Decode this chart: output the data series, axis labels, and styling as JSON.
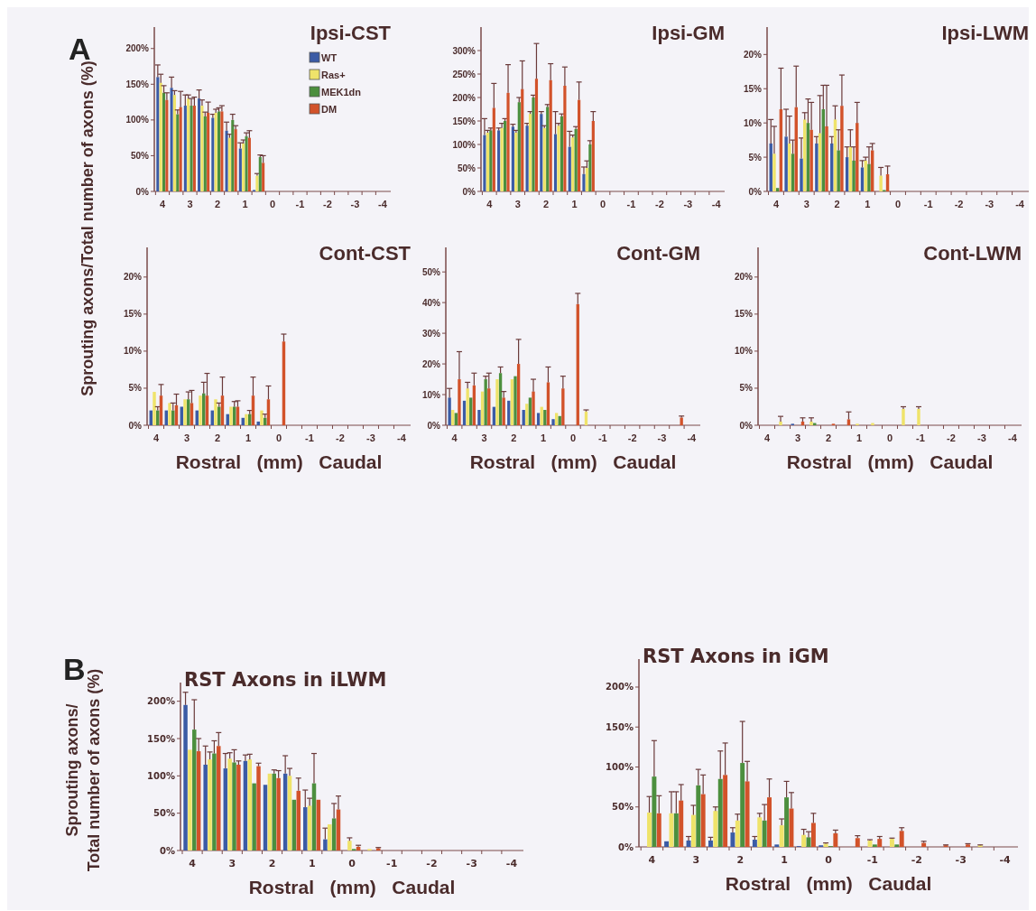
{
  "chart_data": [
    {
      "type": "bar",
      "title": "Ipsi-CST",
      "ylabel": "Sprouting axons/Total number of axons (%)",
      "annotations": [
        "A"
      ],
      "legend": "top right",
      "categories": [
        "4",
        null,
        "3",
        null,
        "2",
        null,
        "1",
        null,
        "0",
        null,
        "-1",
        null,
        "-2",
        null,
        "-3",
        null,
        "-4"
      ],
      "ylim": [
        0,
        230
      ],
      "yticks": [
        {
          "value": 0,
          "label": "0%"
        },
        {
          "value": 50,
          "label": "50%"
        },
        {
          "value": 100,
          "label": "100%"
        },
        {
          "value": 150,
          "label": "150%"
        },
        {
          "value": 200,
          "label": "200%"
        }
      ],
      "series": [
        {
          "name": "WT",
          "color": "#3b5ba5",
          "values": [
            160,
            145,
            120,
            130,
            103,
            85,
            60,
            2,
            null,
            null,
            null,
            null,
            null,
            null,
            null,
            null,
            null
          ],
          "errors": [
            17,
            15,
            15,
            12,
            5,
            12,
            8,
            null,
            null,
            null,
            null,
            null,
            null,
            null,
            null,
            null,
            null
          ]
        },
        {
          "name": "Ras+",
          "color": "#efe36a",
          "values": [
            152,
            135,
            130,
            120,
            110,
            75,
            67,
            22,
            null,
            null,
            null,
            null,
            null,
            null,
            null,
            null,
            null
          ],
          "errors": [
            12,
            6,
            5,
            8,
            5,
            5,
            5,
            3,
            null,
            null,
            null,
            null,
            null,
            null,
            null,
            null,
            null
          ]
        },
        {
          "name": "MEK1dn",
          "color": "#4c8f3e",
          "values": [
            138,
            108,
            120,
            105,
            112,
            100,
            77,
            48,
            null,
            null,
            null,
            null,
            null,
            null,
            null,
            null,
            null
          ],
          "errors": [
            10,
            6,
            10,
            6,
            5,
            8,
            5,
            3,
            null,
            null,
            null,
            null,
            null,
            null,
            null,
            null,
            null
          ]
        },
        {
          "name": "DM",
          "color": "#d2522a",
          "values": [
            128,
            118,
            120,
            110,
            112,
            87,
            75,
            40,
            null,
            null,
            null,
            null,
            null,
            null,
            null,
            null,
            null
          ],
          "errors": [
            10,
            22,
            12,
            15,
            8,
            5,
            10,
            10,
            null,
            null,
            null,
            null,
            null,
            null,
            null,
            null,
            null
          ]
        }
      ]
    },
    {
      "type": "bar",
      "title": "Ipsi-GM",
      "categories": [
        "4",
        null,
        "3",
        null,
        "2",
        null,
        "1",
        null,
        "0",
        null,
        "-1",
        null,
        "-2",
        null,
        "-3",
        null,
        "-4"
      ],
      "ylim": [
        0,
        350
      ],
      "yticks": [
        {
          "value": 0,
          "label": "0%"
        },
        {
          "value": 50,
          "label": "50%"
        },
        {
          "value": 100,
          "label": "100%"
        },
        {
          "value": 150,
          "label": "150%"
        },
        {
          "value": 200,
          "label": "200%"
        },
        {
          "value": 250,
          "label": "250%"
        },
        {
          "value": 300,
          "label": "300%"
        }
      ],
      "series": [
        {
          "color": "#3b5ba5",
          "values": [
            120,
            130,
            138,
            140,
            165,
            122,
            95,
            37,
            null,
            null,
            null,
            null,
            null,
            null,
            null,
            null,
            null
          ],
          "errors": [
            35,
            5,
            5,
            5,
            5,
            48,
            33,
            15,
            null,
            null,
            null,
            null,
            null,
            null,
            null,
            null,
            null
          ]
        },
        {
          "color": "#efe36a",
          "values": [
            125,
            135,
            125,
            165,
            135,
            140,
            115,
            50,
            null,
            null,
            null,
            null,
            null,
            null,
            null,
            null,
            null
          ],
          "errors": [
            5,
            10,
            5,
            5,
            5,
            5,
            5,
            15,
            null,
            null,
            null,
            null,
            null,
            null,
            null,
            null,
            null
          ]
        },
        {
          "color": "#4c8f3e",
          "values": [
            130,
            150,
            190,
            200,
            180,
            160,
            133,
            100,
            null,
            null,
            null,
            null,
            null,
            null,
            null,
            null,
            null
          ],
          "errors": [
            5,
            5,
            10,
            5,
            5,
            5,
            5,
            8,
            null,
            null,
            null,
            null,
            null,
            null,
            null,
            null,
            null
          ]
        },
        {
          "color": "#d2522a",
          "values": [
            178,
            210,
            218,
            240,
            237,
            225,
            195,
            150,
            null,
            null,
            null,
            null,
            null,
            null,
            null,
            null,
            null
          ],
          "errors": [
            52,
            60,
            60,
            75,
            35,
            40,
            38,
            20,
            null,
            null,
            null,
            null,
            null,
            null,
            null,
            null,
            null
          ]
        }
      ]
    },
    {
      "type": "bar",
      "title": "Ipsi-LWM",
      "categories": [
        "4",
        null,
        "3",
        null,
        "2",
        null,
        "1",
        null,
        "0",
        null,
        "-1",
        null,
        "-2",
        null,
        "-3",
        null,
        "-4"
      ],
      "ylim": [
        0,
        24
      ],
      "yticks": [
        {
          "value": 0,
          "label": "0%"
        },
        {
          "value": 5,
          "label": "5%"
        },
        {
          "value": 10,
          "label": "10%"
        },
        {
          "value": 15,
          "label": "15%"
        },
        {
          "value": 20,
          "label": "20%"
        }
      ],
      "series": [
        {
          "color": "#3b5ba5",
          "values": [
            7,
            8,
            4.8,
            7,
            7,
            5,
            3.5,
            null,
            null,
            null,
            null,
            null,
            null,
            null,
            null,
            null,
            null
          ],
          "errors": [
            3.5,
            4,
            3,
            1,
            1,
            1.5,
            1,
            null,
            null,
            null,
            null,
            null,
            null,
            null,
            null,
            null,
            null
          ]
        },
        {
          "color": "#efe36a",
          "values": [
            5.5,
            7,
            10.5,
            8.5,
            10.5,
            6.5,
            4.5,
            2.3,
            null,
            null,
            null,
            null,
            null,
            null,
            null,
            null,
            null
          ],
          "errors": [
            4,
            4,
            1,
            5.5,
            2,
            2.5,
            0.5,
            1.2,
            null,
            null,
            null,
            null,
            null,
            null,
            null,
            null,
            null
          ]
        },
        {
          "color": "#4c8f3e",
          "values": [
            0.5,
            5.5,
            10,
            12,
            6,
            4.5,
            4,
            0.2,
            null,
            null,
            null,
            null,
            null,
            null,
            null,
            null,
            null
          ],
          "errors": [
            null,
            2,
            3.5,
            3.5,
            3,
            2,
            2.5,
            null,
            null,
            null,
            null,
            null,
            null,
            null,
            null,
            null,
            null
          ]
        },
        {
          "color": "#d2522a",
          "values": [
            12,
            12.3,
            9,
            9.5,
            12.5,
            10,
            6,
            2.5,
            null,
            null,
            null,
            null,
            null,
            null,
            null,
            null,
            null
          ],
          "errors": [
            6,
            6,
            4,
            6,
            4.5,
            3,
            1,
            1.2,
            null,
            null,
            null,
            null,
            null,
            null,
            null,
            null,
            null
          ]
        }
      ]
    },
    {
      "type": "bar",
      "title": "Cont-CST",
      "xlabel": "Rostral   (mm)   Caudal",
      "categories": [
        "4",
        null,
        "3",
        null,
        "2",
        null,
        "1",
        null,
        "0",
        null,
        "-1",
        null,
        "-2",
        null,
        "-3",
        null,
        "-4"
      ],
      "ylim": [
        0,
        24
      ],
      "yticks": [
        {
          "value": 0,
          "label": "0%"
        },
        {
          "value": 5,
          "label": "5%"
        },
        {
          "value": 10,
          "label": "10%"
        },
        {
          "value": 15,
          "label": "15%"
        },
        {
          "value": 20,
          "label": "20%"
        }
      ],
      "series": [
        {
          "color": "#3b5ba5",
          "values": [
            2,
            2,
            2.5,
            2,
            2,
            1.5,
            1,
            0.5,
            null,
            null,
            null,
            null,
            null,
            null,
            null,
            null,
            null
          ],
          "errors": [
            null,
            null,
            null,
            null,
            null,
            null,
            null,
            null,
            null,
            null,
            null,
            null,
            null,
            null,
            null,
            null,
            null
          ]
        },
        {
          "color": "#efe36a",
          "values": [
            4.5,
            3,
            3.5,
            4,
            3.5,
            2.5,
            1.5,
            2,
            null,
            null,
            null,
            null,
            null,
            null,
            null,
            null,
            null
          ],
          "errors": [
            null,
            null,
            null,
            null,
            null,
            null,
            null,
            null,
            null,
            null,
            null,
            null,
            null,
            null,
            null,
            null,
            null
          ]
        },
        {
          "color": "#4c8f3e",
          "values": [
            2,
            2,
            3.5,
            4.3,
            2.5,
            2.5,
            1.5,
            1,
            null,
            null,
            null,
            null,
            null,
            null,
            null,
            null,
            null
          ],
          "errors": [
            0.5,
            1,
            1,
            1.5,
            0.5,
            0.7,
            0.5,
            0.5,
            null,
            null,
            null,
            null,
            null,
            null,
            null,
            null,
            null
          ]
        },
        {
          "color": "#d2522a",
          "values": [
            4,
            2.7,
            3,
            4,
            4,
            2.5,
            4,
            3.5,
            11.3,
            null,
            null,
            null,
            null,
            null,
            null,
            null,
            null
          ],
          "errors": [
            1.5,
            1.5,
            1.7,
            3,
            2.5,
            0.8,
            2.5,
            1.8,
            1,
            null,
            null,
            null,
            null,
            null,
            null,
            null,
            null
          ]
        }
      ]
    },
    {
      "type": "bar",
      "title": "Cont-GM",
      "xlabel": "Rostral   (mm)   Caudal",
      "categories": [
        "4",
        null,
        "3",
        null,
        "2",
        null,
        "1",
        null,
        "0",
        null,
        "-1",
        null,
        "-2",
        null,
        "-3",
        null,
        "-4"
      ],
      "ylim": [
        0,
        58
      ],
      "yticks": [
        {
          "value": 0,
          "label": "0%"
        },
        {
          "value": 10,
          "label": "10%"
        },
        {
          "value": 20,
          "label": "20%"
        },
        {
          "value": 30,
          "label": "30%"
        },
        {
          "value": 40,
          "label": "40%"
        },
        {
          "value": 50,
          "label": "50%"
        }
      ],
      "series": [
        {
          "color": "#3b5ba5",
          "values": [
            9,
            8,
            5,
            6,
            8,
            5,
            4,
            2,
            null,
            null,
            null,
            null,
            null,
            null,
            null,
            null,
            null
          ],
          "errors": [
            3,
            null,
            null,
            null,
            null,
            null,
            null,
            null,
            null,
            null,
            null,
            null,
            null,
            null,
            null,
            null,
            null
          ]
        },
        {
          "color": "#efe36a",
          "values": [
            5,
            12,
            11,
            15,
            15,
            7,
            6,
            4,
            null,
            4.5,
            null,
            null,
            null,
            null,
            null,
            null,
            null
          ],
          "errors": [
            null,
            2,
            null,
            null,
            null,
            null,
            null,
            null,
            null,
            0.5,
            null,
            null,
            null,
            null,
            null,
            null,
            null
          ]
        },
        {
          "color": "#4c8f3e",
          "values": [
            4,
            9,
            15,
            17,
            16,
            9,
            5,
            3,
            null,
            null,
            null,
            null,
            null,
            null,
            null,
            null,
            null
          ],
          "errors": [
            null,
            null,
            1,
            2,
            null,
            null,
            null,
            null,
            null,
            null,
            null,
            null,
            null,
            null,
            null,
            null,
            null
          ]
        },
        {
          "color": "#d2522a",
          "values": [
            15,
            13,
            12,
            9,
            20,
            11,
            14,
            12,
            39.5,
            null,
            null,
            null,
            null,
            null,
            null,
            2.5,
            null
          ],
          "errors": [
            9,
            4,
            5,
            2,
            8,
            4,
            5,
            4,
            3.5,
            null,
            null,
            null,
            null,
            null,
            null,
            0.5,
            null
          ]
        }
      ]
    },
    {
      "type": "bar",
      "title": "Cont-LWM",
      "xlabel": "Rostral   (mm)   Caudal",
      "categories": [
        "4",
        null,
        "3",
        null,
        "2",
        null,
        "1",
        null,
        "0",
        null,
        "-1",
        null,
        "-2",
        null,
        "-3",
        null,
        "-4"
      ],
      "ylim": [
        0,
        24
      ],
      "yticks": [
        {
          "value": 0,
          "label": "0%"
        },
        {
          "value": 5,
          "label": "5%"
        },
        {
          "value": 10,
          "label": "10%"
        },
        {
          "value": 15,
          "label": "15%"
        },
        {
          "value": 20,
          "label": "20%"
        }
      ],
      "series": [
        {
          "color": "#3b5ba5",
          "values": [
            null,
            null,
            0.2,
            null,
            null,
            null,
            null,
            null,
            null,
            null,
            null,
            null,
            null,
            null,
            null,
            null,
            null
          ],
          "errors": [
            null,
            null,
            null,
            null,
            null,
            null,
            null,
            null,
            null,
            null,
            null,
            null,
            null,
            null,
            null,
            null,
            null
          ]
        },
        {
          "color": "#efe36a",
          "values": [
            null,
            0.5,
            null,
            0.5,
            null,
            null,
            0.2,
            0.3,
            null,
            2.2,
            2.2,
            null,
            null,
            null,
            null,
            null,
            null
          ],
          "errors": [
            null,
            0.7,
            null,
            0.5,
            null,
            null,
            null,
            null,
            null,
            0.3,
            0.3,
            null,
            null,
            null,
            null,
            null,
            null
          ]
        },
        {
          "color": "#4c8f3e",
          "values": [
            null,
            null,
            null,
            0.3,
            null,
            null,
            null,
            null,
            null,
            null,
            null,
            null,
            null,
            null,
            null,
            null,
            null
          ],
          "errors": [
            null,
            null,
            null,
            null,
            null,
            null,
            null,
            null,
            null,
            null,
            null,
            null,
            null,
            null,
            null,
            null,
            null
          ]
        },
        {
          "color": "#d2522a",
          "values": [
            null,
            null,
            0.5,
            null,
            0.2,
            0.8,
            null,
            null,
            null,
            null,
            null,
            null,
            null,
            null,
            null,
            null,
            null
          ],
          "errors": [
            null,
            null,
            0.5,
            null,
            null,
            1,
            null,
            null,
            null,
            null,
            null,
            null,
            null,
            null,
            null,
            null,
            null
          ]
        }
      ]
    },
    {
      "type": "bar",
      "title": "RST Axons in iLWM",
      "ylabel": "Sprouting axons/\nTotal number of axons (%)",
      "xlabel": "Rostral   (mm)   Caudal",
      "annotations": [
        "B"
      ],
      "categories": [
        "4",
        null,
        "3",
        null,
        "2",
        null,
        "1",
        null,
        "0",
        null,
        "-1",
        null,
        "-2",
        null,
        "-3",
        null,
        "-4"
      ],
      "ylim": [
        0,
        225
      ],
      "yticks": [
        {
          "value": 0,
          "label": "0%"
        },
        {
          "value": 50,
          "label": "50%"
        },
        {
          "value": 100,
          "label": "100%"
        },
        {
          "value": 150,
          "label": "150%"
        },
        {
          "value": 200,
          "label": "200%"
        }
      ],
      "series": [
        {
          "color": "#3b5ba5",
          "values": [
            195,
            115,
            110,
            120,
            88,
            103,
            58,
            15,
            null,
            null,
            null,
            null,
            null,
            null,
            null,
            null,
            null
          ],
          "errors": [
            17,
            25,
            20,
            8,
            null,
            24,
            23,
            15,
            null,
            null,
            null,
            null,
            null,
            null,
            null,
            null,
            null
          ]
        },
        {
          "color": "#efe36a",
          "values": [
            135,
            122,
            123,
            122,
            103,
            100,
            60,
            35,
            13,
            2,
            null,
            null,
            null,
            null,
            null,
            null,
            null
          ],
          "errors": [
            null,
            10,
            8,
            7,
            null,
            10,
            10,
            null,
            4,
            null,
            null,
            null,
            null,
            null,
            null,
            null,
            null
          ]
        },
        {
          "color": "#4c8f3e",
          "values": [
            162,
            130,
            118,
            90,
            103,
            68,
            90,
            43,
            2,
            null,
            null,
            null,
            null,
            null,
            null,
            null,
            null
          ],
          "errors": [
            40,
            17,
            17,
            null,
            5,
            null,
            40,
            20,
            null,
            null,
            null,
            null,
            null,
            null,
            null,
            null,
            null
          ]
        },
        {
          "color": "#d2522a",
          "values": [
            133,
            140,
            115,
            113,
            97,
            80,
            68,
            55,
            5,
            3,
            null,
            null,
            null,
            null,
            null,
            null,
            null
          ],
          "errors": [
            17,
            18,
            5,
            4,
            10,
            17,
            null,
            18,
            2,
            1,
            null,
            null,
            null,
            null,
            null,
            null,
            null
          ]
        }
      ]
    },
    {
      "type": "bar",
      "title": "RST Axons in iGM",
      "xlabel": "Rostral   (mm)   Caudal",
      "categories": [
        "4",
        null,
        "3",
        null,
        "2",
        null,
        "1",
        null,
        "0",
        null,
        "-1",
        null,
        "-2",
        null,
        "-3",
        null,
        "-4"
      ],
      "ylim": [
        0,
        235
      ],
      "yticks": [
        {
          "value": 0,
          "label": "0%"
        },
        {
          "value": 50,
          "label": "50%"
        },
        {
          "value": 100,
          "label": "100%"
        },
        {
          "value": 150,
          "label": "150%"
        },
        {
          "value": 200,
          "label": "200%"
        }
      ],
      "series": [
        {
          "color": "#3b5ba5",
          "values": [
            null,
            7,
            8,
            8,
            18,
            9,
            3,
            1,
            2,
            null,
            null,
            null,
            null,
            null,
            null,
            null,
            null
          ],
          "errors": [
            null,
            null,
            5,
            4,
            6,
            4,
            null,
            null,
            null,
            null,
            null,
            null,
            null,
            null,
            null,
            null,
            null
          ]
        },
        {
          "color": "#efe36a",
          "values": [
            43,
            42,
            40,
            45,
            33,
            37,
            27,
            15,
            4,
            null,
            8,
            10,
            null,
            null,
            null,
            2,
            null
          ],
          "errors": [
            20,
            27,
            12,
            5,
            8,
            5,
            8,
            7,
            1,
            null,
            1,
            1,
            null,
            null,
            null,
            0.5,
            null
          ]
        },
        {
          "color": "#4c8f3e",
          "values": [
            88,
            42,
            77,
            85,
            105,
            33,
            62,
            12,
            1,
            null,
            3,
            3,
            null,
            null,
            null,
            null,
            null
          ],
          "errors": [
            45,
            27,
            20,
            35,
            52,
            20,
            20,
            7,
            null,
            null,
            null,
            null,
            null,
            null,
            null,
            null,
            null
          ]
        },
        {
          "color": "#d2522a",
          "values": [
            42,
            58,
            66,
            90,
            82,
            62,
            48,
            30,
            17,
            11,
            10,
            20,
            5,
            2,
            3,
            null,
            null
          ],
          "errors": [
            22,
            20,
            24,
            40,
            25,
            23,
            20,
            12,
            4,
            3,
            3,
            4,
            2,
            0.5,
            1,
            null,
            null
          ]
        }
      ]
    }
  ]
}
